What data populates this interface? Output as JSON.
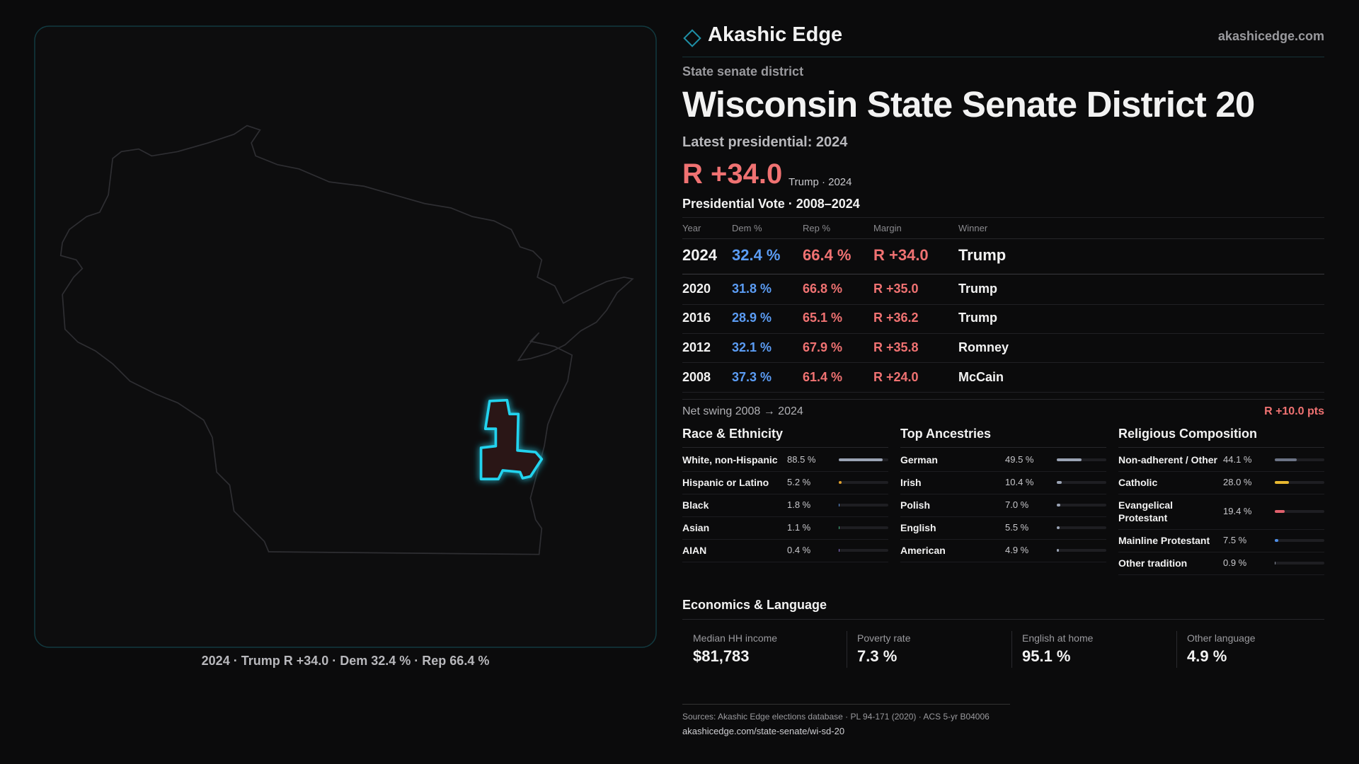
{
  "brand": {
    "name": "Akashic Edge",
    "site": "akashicedge.com"
  },
  "header": {
    "kicker": "State senate district",
    "title": "Wisconsin State Senate District 20",
    "latest_label": "Latest presidential: 2024",
    "margin": "R +34.0",
    "margin_note": "Trump · 2024"
  },
  "vote_table": {
    "title": "Presidential Vote · 2008–2024",
    "columns": [
      "Year",
      "Dem %",
      "Rep %",
      "Margin",
      "Winner"
    ],
    "rows": [
      [
        "2024",
        "32.4 %",
        "66.4 %",
        "R +34.0",
        "Trump"
      ],
      [
        "2020",
        "31.8 %",
        "66.8 %",
        "R +35.0",
        "Trump"
      ],
      [
        "2016",
        "28.9 %",
        "65.1 %",
        "R +36.2",
        "Trump"
      ],
      [
        "2012",
        "32.1 %",
        "67.9 %",
        "R +35.8",
        "Romney"
      ],
      [
        "2008",
        "37.3 %",
        "61.4 %",
        "R +24.0",
        "McCain"
      ]
    ]
  },
  "swing": {
    "label": "Net swing 2008 → 2024",
    "value": "R +10.0 pts"
  },
  "panels": [
    {
      "title": "Race & Ethnicity",
      "items": [
        {
          "label": "White, non-Hispanic",
          "value": 88.5,
          "value_label": "88.5 %",
          "color": "#9aa3b4"
        },
        {
          "label": "Hispanic or Latino",
          "value": 5.2,
          "value_label": "5.2 %",
          "color": "#e0a02c"
        },
        {
          "label": "Black",
          "value": 1.8,
          "value_label": "1.8 %",
          "color": "#5b8fd6"
        },
        {
          "label": "Asian",
          "value": 1.1,
          "value_label": "1.1 %",
          "color": "#3fae7a"
        },
        {
          "label": "AIAN",
          "value": 0.4,
          "value_label": "0.4 %",
          "color": "#8a6fd0"
        }
      ]
    },
    {
      "title": "Top Ancestries",
      "items": [
        {
          "label": "German",
          "value": 49.5,
          "value_label": "49.5 %",
          "color": "#9aa3b4"
        },
        {
          "label": "Irish",
          "value": 10.4,
          "value_label": "10.4 %",
          "color": "#9aa3b4"
        },
        {
          "label": "Polish",
          "value": 7.0,
          "value_label": "7.0 %",
          "color": "#9aa3b4"
        },
        {
          "label": "English",
          "value": 5.5,
          "value_label": "5.5 %",
          "color": "#9aa3b4"
        },
        {
          "label": "American",
          "value": 4.9,
          "value_label": "4.9 %",
          "color": "#9aa3b4"
        }
      ]
    },
    {
      "title": "Religious Composition",
      "items": [
        {
          "label": "Non-adherent / Other",
          "value": 44.1,
          "value_label": "44.1 %",
          "color": "#6b7385"
        },
        {
          "label": "Catholic",
          "value": 28.0,
          "value_label": "28.0 %",
          "color": "#e8b830"
        },
        {
          "label": "Evangelical Protestant",
          "value": 19.4,
          "value_label": "19.4 %",
          "color": "#e0606c"
        },
        {
          "label": "Mainline Protestant",
          "value": 7.5,
          "value_label": "7.5 %",
          "color": "#4f8fe8"
        },
        {
          "label": "Other tradition",
          "value": 0.9,
          "value_label": "0.9 %",
          "color": "#8a8f9c"
        }
      ]
    }
  ],
  "economics": {
    "title": "Economics & Language",
    "items": [
      {
        "label": "Median HH income",
        "value": "$81,783"
      },
      {
        "label": "Poverty rate",
        "value": "7.3 %"
      },
      {
        "label": "English at home",
        "value": "95.1 %"
      },
      {
        "label": "Other language",
        "value": "4.9 %"
      }
    ]
  },
  "map": {
    "caption": "2024 · Trump R +34.0 · Dem 32.4 % · Rep 66.4 %"
  },
  "footer": {
    "sources": "Sources: Akashic Edge elections database · PL 94-171 (2020) · ACS 5-yr B04006",
    "url": "akashicedge.com/state-senate/wi-sd-20"
  }
}
